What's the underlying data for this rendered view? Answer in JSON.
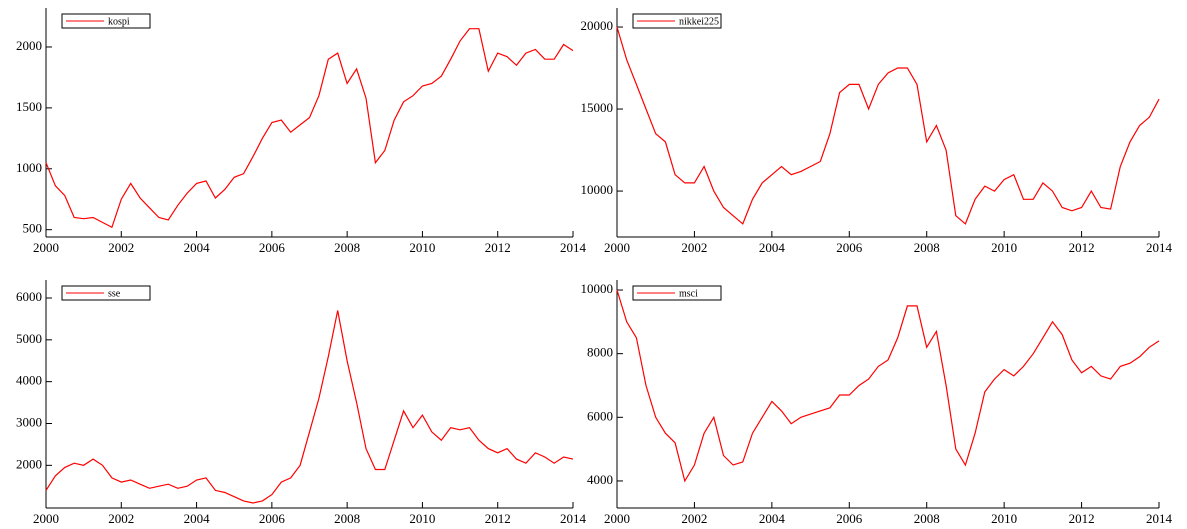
{
  "chart_data": [
    {
      "type": "line",
      "legend": "upper left",
      "x": [
        2000,
        2000.25,
        2000.5,
        2000.75,
        2001,
        2001.25,
        2001.5,
        2001.75,
        2002,
        2002.25,
        2002.5,
        2002.75,
        2003,
        2003.25,
        2003.5,
        2003.75,
        2004,
        2004.25,
        2004.5,
        2004.75,
        2005,
        2005.25,
        2005.5,
        2005.75,
        2006,
        2006.25,
        2006.5,
        2006.75,
        2007,
        2007.25,
        2007.5,
        2007.75,
        2008,
        2008.25,
        2008.5,
        2008.75,
        2009,
        2009.25,
        2009.5,
        2009.75,
        2010,
        2010.25,
        2010.5,
        2010.75,
        2011,
        2011.25,
        2011.5,
        2011.75,
        2012,
        2012.25,
        2012.5,
        2012.75,
        2013,
        2013.25,
        2013.5,
        2013.75,
        2014
      ],
      "series": [
        {
          "name": "kospi",
          "color": "#ff0000",
          "values": [
            1050,
            860,
            780,
            600,
            590,
            600,
            560,
            520,
            750,
            880,
            760,
            680,
            600,
            580,
            700,
            800,
            880,
            900,
            760,
            830,
            930,
            960,
            1100,
            1250,
            1380,
            1400,
            1300,
            1360,
            1420,
            1600,
            1900,
            1950,
            1700,
            1820,
            1580,
            1050,
            1150,
            1400,
            1550,
            1600,
            1680,
            1700,
            1760,
            1900,
            2050,
            2150,
            2150,
            1800,
            1950,
            1920,
            1850,
            1950,
            1980,
            1900,
            1900,
            2020,
            1970
          ]
        }
      ],
      "xlim": [
        2000,
        2014
      ],
      "xticks": [
        2000,
        2002,
        2004,
        2006,
        2008,
        2010,
        2012,
        2014
      ],
      "ylim": [
        440,
        2320
      ],
      "yticks": [
        500,
        1000,
        1500,
        2000
      ]
    },
    {
      "type": "line",
      "legend": "upper left",
      "x": [
        2000,
        2000.25,
        2000.5,
        2000.75,
        2001,
        2001.25,
        2001.5,
        2001.75,
        2002,
        2002.25,
        2002.5,
        2002.75,
        2003,
        2003.25,
        2003.5,
        2003.75,
        2004,
        2004.25,
        2004.5,
        2004.75,
        2005,
        2005.25,
        2005.5,
        2005.75,
        2006,
        2006.25,
        2006.5,
        2006.75,
        2007,
        2007.25,
        2007.5,
        2007.75,
        2008,
        2008.25,
        2008.5,
        2008.75,
        2009,
        2009.25,
        2009.5,
        2009.75,
        2010,
        2010.25,
        2010.5,
        2010.75,
        2011,
        2011.25,
        2011.5,
        2011.75,
        2012,
        2012.25,
        2012.5,
        2012.75,
        2013,
        2013.25,
        2013.5,
        2013.75,
        2014
      ],
      "series": [
        {
          "name": "nikkei225",
          "color": "#ff0000",
          "values": [
            20000,
            18000,
            16500,
            15000,
            13500,
            13000,
            11000,
            10500,
            10500,
            11500,
            10000,
            9000,
            8500,
            8000,
            9500,
            10500,
            11000,
            11500,
            11000,
            11200,
            11500,
            11800,
            13500,
            16000,
            16500,
            16500,
            15000,
            16500,
            17200,
            17500,
            17500,
            16500,
            13000,
            14000,
            12500,
            8500,
            8000,
            9500,
            10300,
            10000,
            10700,
            11000,
            9500,
            9500,
            10500,
            10000,
            9000,
            8800,
            9000,
            10000,
            9000,
            8900,
            11500,
            13000,
            14000,
            14500,
            15600
          ]
        }
      ],
      "xlim": [
        2000,
        2014
      ],
      "xticks": [
        2000,
        2002,
        2004,
        2006,
        2008,
        2010,
        2012,
        2014
      ],
      "ylim": [
        7200,
        21160
      ],
      "yticks": [
        10000,
        15000,
        20000
      ]
    },
    {
      "type": "line",
      "legend": "upper left",
      "x": [
        2000,
        2000.25,
        2000.5,
        2000.75,
        2001,
        2001.25,
        2001.5,
        2001.75,
        2002,
        2002.25,
        2002.5,
        2002.75,
        2003,
        2003.25,
        2003.5,
        2003.75,
        2004,
        2004.25,
        2004.5,
        2004.75,
        2005,
        2005.25,
        2005.5,
        2005.75,
        2006,
        2006.25,
        2006.5,
        2006.75,
        2007,
        2007.25,
        2007.5,
        2007.75,
        2008,
        2008.25,
        2008.5,
        2008.75,
        2009,
        2009.25,
        2009.5,
        2009.75,
        2010,
        2010.25,
        2010.5,
        2010.75,
        2011,
        2011.25,
        2011.5,
        2011.75,
        2012,
        2012.25,
        2012.5,
        2012.75,
        2013,
        2013.25,
        2013.5,
        2013.75,
        2014
      ],
      "series": [
        {
          "name": "sse",
          "color": "#ff0000",
          "values": [
            1400,
            1750,
            1950,
            2050,
            2000,
            2150,
            2000,
            1700,
            1600,
            1650,
            1550,
            1450,
            1500,
            1550,
            1450,
            1500,
            1650,
            1700,
            1400,
            1350,
            1250,
            1150,
            1100,
            1150,
            1300,
            1600,
            1700,
            2000,
            2800,
            3600,
            4600,
            5700,
            4500,
            3500,
            2400,
            1900,
            1900,
            2600,
            3300,
            2900,
            3200,
            2800,
            2600,
            2900,
            2850,
            2900,
            2600,
            2400,
            2300,
            2400,
            2150,
            2050,
            2300,
            2200,
            2050,
            2200,
            2150
          ]
        }
      ],
      "xlim": [
        2000,
        2014
      ],
      "xticks": [
        2000,
        2002,
        2004,
        2006,
        2008,
        2010,
        2012,
        2014
      ],
      "ylim": [
        980,
        6430
      ],
      "yticks": [
        2000,
        3000,
        4000,
        5000,
        6000
      ]
    },
    {
      "type": "line",
      "legend": "upper left",
      "x": [
        2000,
        2000.25,
        2000.5,
        2000.75,
        2001,
        2001.25,
        2001.5,
        2001.75,
        2002,
        2002.25,
        2002.5,
        2002.75,
        2003,
        2003.25,
        2003.5,
        2003.75,
        2004,
        2004.25,
        2004.5,
        2004.75,
        2005,
        2005.25,
        2005.5,
        2005.75,
        2006,
        2006.25,
        2006.5,
        2006.75,
        2007,
        2007.25,
        2007.5,
        2007.75,
        2008,
        2008.25,
        2008.5,
        2008.75,
        2009,
        2009.25,
        2009.5,
        2009.75,
        2010,
        2010.25,
        2010.5,
        2010.75,
        2011,
        2011.25,
        2011.5,
        2011.75,
        2012,
        2012.25,
        2012.5,
        2012.75,
        2013,
        2013.25,
        2013.5,
        2013.75,
        2014
      ],
      "series": [
        {
          "name": "msci",
          "color": "#ff0000",
          "values": [
            10000,
            9000,
            8500,
            7000,
            6000,
            5500,
            5200,
            4000,
            4500,
            5500,
            6000,
            4800,
            4500,
            4600,
            5500,
            6000,
            6500,
            6200,
            5800,
            6000,
            6100,
            6200,
            6300,
            6700,
            6700,
            7000,
            7200,
            7600,
            7800,
            8500,
            9500,
            9500,
            8200,
            8700,
            7000,
            5000,
            4500,
            5500,
            6800,
            7200,
            7500,
            7300,
            7600,
            8000,
            8500,
            9000,
            8600,
            7800,
            7400,
            7600,
            7300,
            7200,
            7600,
            7700,
            7900,
            8200,
            8400
          ]
        }
      ],
      "xlim": [
        2000,
        2014
      ],
      "xticks": [
        2000,
        2002,
        2004,
        2006,
        2008,
        2010,
        2012,
        2014
      ],
      "ylim": [
        3150,
        10315
      ],
      "yticks": [
        4000,
        6000,
        8000,
        10000
      ]
    }
  ]
}
